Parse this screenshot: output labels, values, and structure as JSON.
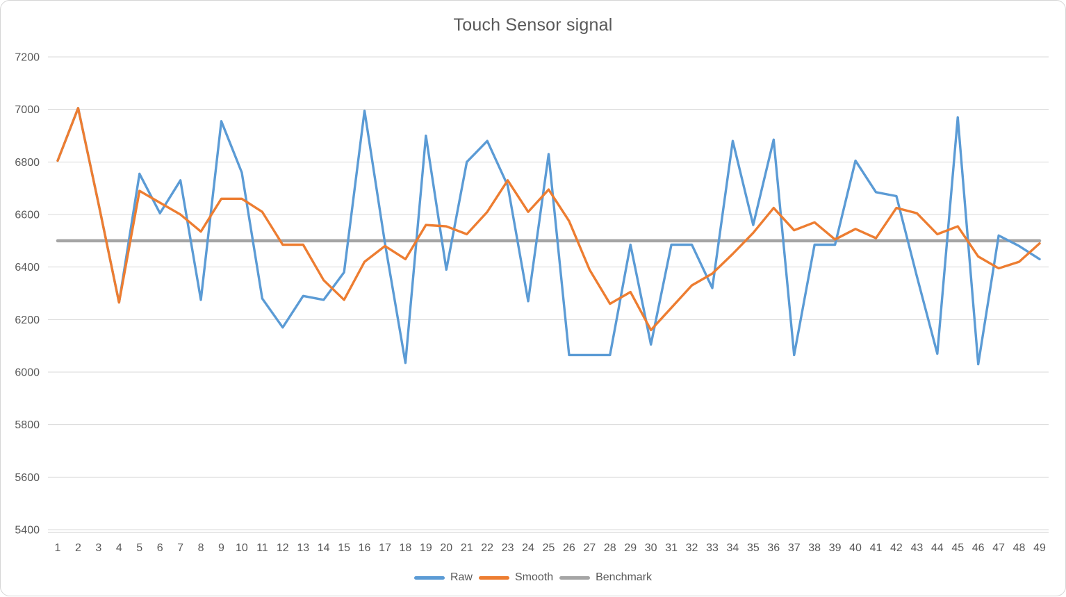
{
  "title": "Touch Sensor signal",
  "legend": {
    "items": [
      {
        "label": "Raw",
        "color": "#5B9BD5"
      },
      {
        "label": "Smooth",
        "color": "#ED7D31"
      },
      {
        "label": "Benchmark",
        "color": "#A5A5A5"
      }
    ]
  },
  "chart_data": {
    "type": "line",
    "title": "Touch Sensor signal",
    "xlabel": "",
    "ylabel": "",
    "ylim": [
      5400,
      7200
    ],
    "ytick_step": 200,
    "grid": "horizontal",
    "legend_position": "bottom",
    "label_color": "#595959",
    "gridline_color": "#d9d9d9",
    "axis_line_color": "#d9d9d9",
    "categories": [
      1,
      2,
      3,
      4,
      5,
      6,
      7,
      8,
      9,
      10,
      11,
      12,
      13,
      14,
      15,
      16,
      17,
      18,
      19,
      20,
      21,
      22,
      23,
      24,
      25,
      26,
      27,
      28,
      29,
      30,
      31,
      32,
      33,
      34,
      35,
      36,
      37,
      38,
      39,
      40,
      41,
      42,
      43,
      44,
      45,
      46,
      47,
      48,
      49
    ],
    "series": [
      {
        "name": "Raw",
        "color": "#5B9BD5",
        "stroke_width": 3.4,
        "values": [
          6805,
          7005,
          6640,
          6265,
          6755,
          6605,
          6730,
          6275,
          6955,
          6760,
          6280,
          6170,
          6290,
          6275,
          6380,
          6995,
          6490,
          6035,
          6900,
          6390,
          6800,
          6880,
          6710,
          6270,
          6830,
          6065,
          6065,
          6065,
          6485,
          6105,
          6485,
          6485,
          6320,
          6880,
          6560,
          6885,
          6065,
          6485,
          6485,
          6805,
          6685,
          6670,
          6365,
          6070,
          6970,
          6030,
          6520,
          6480,
          6430
        ]
      },
      {
        "name": "Smooth",
        "color": "#ED7D31",
        "stroke_width": 3.4,
        "values": [
          6805,
          7005,
          6640,
          6265,
          6690,
          6645,
          6600,
          6535,
          6660,
          6660,
          6610,
          6485,
          6485,
          6350,
          6275,
          6420,
          6480,
          6430,
          6560,
          6555,
          6525,
          6610,
          6730,
          6610,
          6695,
          6575,
          6390,
          6260,
          6305,
          6160,
          6245,
          6330,
          6375,
          6450,
          6530,
          6625,
          6540,
          6570,
          6505,
          6545,
          6510,
          6625,
          6605,
          6525,
          6555,
          6440,
          6395,
          6420,
          6490
        ]
      },
      {
        "name": "Benchmark",
        "color": "#A5A5A5",
        "stroke_width": 4.6,
        "constant_value": 6500
      }
    ]
  }
}
